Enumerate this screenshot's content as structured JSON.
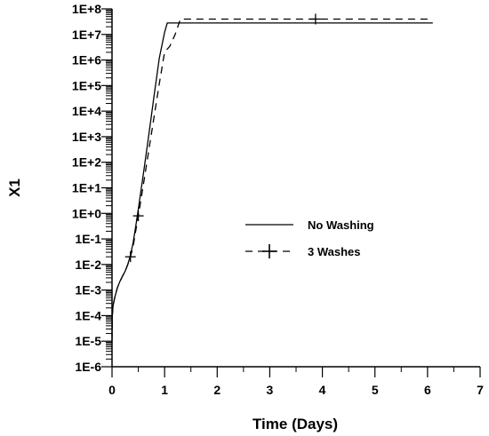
{
  "chart_data": {
    "type": "line",
    "title": "",
    "xlabel": "Time (Days)",
    "ylabel": "X1",
    "xlim": [
      0,
      7
    ],
    "ylim": [
      1e-06,
      100000000.0
    ],
    "yscale": "log",
    "grid": false,
    "legend_position": "center-right",
    "x_ticks": [
      {
        "value": 0,
        "label": "0"
      },
      {
        "value": 1,
        "label": "1"
      },
      {
        "value": 2,
        "label": "2"
      },
      {
        "value": 3,
        "label": "3"
      },
      {
        "value": 4,
        "label": "4"
      },
      {
        "value": 5,
        "label": "5"
      },
      {
        "value": 6,
        "label": "6"
      },
      {
        "value": 7,
        "label": "7"
      }
    ],
    "y_ticks": [
      {
        "value": 100000000.0,
        "label": "1E+8"
      },
      {
        "value": 10000000.0,
        "label": "1E+7"
      },
      {
        "value": 1000000.0,
        "label": "1E+6"
      },
      {
        "value": 100000.0,
        "label": "1E+5"
      },
      {
        "value": 10000.0,
        "label": "1E+4"
      },
      {
        "value": 1000.0,
        "label": "1E+3"
      },
      {
        "value": 100.0,
        "label": "1E+2"
      },
      {
        "value": 10.0,
        "label": "1E+1"
      },
      {
        "value": 1.0,
        "label": "1E+0"
      },
      {
        "value": 0.1,
        "label": "1E-1"
      },
      {
        "value": 0.01,
        "label": "1E-2"
      },
      {
        "value": 0.001,
        "label": "1E-3"
      },
      {
        "value": 0.0001,
        "label": "1E-4"
      },
      {
        "value": 1e-05,
        "label": "1E-5"
      },
      {
        "value": 1e-06,
        "label": "1E-6"
      }
    ],
    "series": [
      {
        "name": "No Washing",
        "style": "solid",
        "color": "#000000",
        "marker": "none",
        "points": [
          [
            0,
            1.5e-05
          ],
          [
            0.005,
            0.0001
          ],
          [
            0.02,
            0.00025
          ],
          [
            0.05,
            0.0005
          ],
          [
            0.1,
            0.0012
          ],
          [
            0.15,
            0.0022
          ],
          [
            0.2,
            0.0035
          ],
          [
            0.25,
            0.0055
          ],
          [
            0.3,
            0.01
          ],
          [
            0.35,
            0.023
          ],
          [
            0.4,
            0.07
          ],
          [
            0.45,
            0.3
          ],
          [
            0.5,
            1.5
          ],
          [
            0.6,
            40
          ],
          [
            0.7,
            1200
          ],
          [
            0.8,
            40000
          ],
          [
            0.9,
            1200000.0
          ],
          [
            1.0,
            12000000.0
          ],
          [
            1.05,
            28000000.0
          ],
          [
            6.1,
            28000000.0
          ]
        ]
      },
      {
        "name": "3 Washes",
        "style": "dashed",
        "color": "#000000",
        "marker": "plus",
        "points": [
          [
            0,
            1e-05
          ],
          [
            0.005,
            0.0001
          ],
          [
            0.02,
            0.00025
          ],
          [
            0.05,
            0.0005
          ],
          [
            0.1,
            0.0012
          ],
          [
            0.15,
            0.0022
          ],
          [
            0.2,
            0.0035
          ],
          [
            0.25,
            0.0055
          ],
          [
            0.3,
            0.01
          ],
          [
            0.35,
            0.02
          ],
          [
            0.4,
            0.05
          ],
          [
            0.45,
            0.2
          ],
          [
            0.5,
            0.8
          ],
          [
            0.6,
            15
          ],
          [
            0.7,
            300
          ],
          [
            0.8,
            6000
          ],
          [
            0.9,
            120000.0
          ],
          [
            1.0,
            2000000.0
          ],
          [
            1.1,
            3500000.0
          ],
          [
            1.2,
            10000000.0
          ],
          [
            1.3,
            40000000.0
          ],
          [
            6.1,
            40000000.0
          ]
        ],
        "marker_points": [
          [
            0.35,
            0.02
          ],
          [
            0.5,
            0.8
          ],
          [
            3.87,
            40000000.0
          ]
        ]
      }
    ]
  }
}
